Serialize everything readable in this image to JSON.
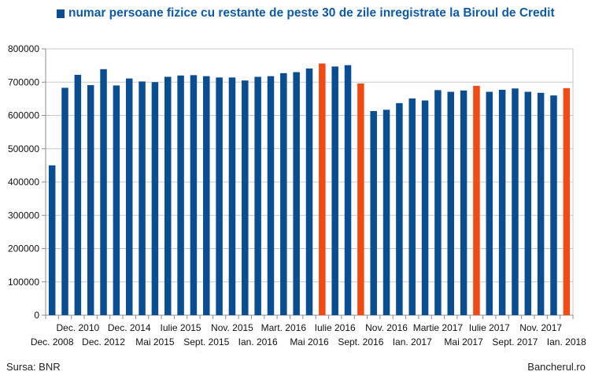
{
  "colors": {
    "bar": "#0b4d91",
    "highlight": "#f24a14",
    "legend_text": "#0f5aa6",
    "grid": "#c8c8c8",
    "axis": "#8c8c8c",
    "text": "#111111"
  },
  "footer": {
    "source": "Sursa: BNR",
    "brand": "Bancherul.ro"
  },
  "chart_data": {
    "type": "bar",
    "legend": "numar persoane fizice cu restante de peste 30 de zile inregistrate la Biroul de Credit",
    "legend_position": "top",
    "grid": true,
    "ylim": [
      0,
      800000
    ],
    "yticks": [
      "0",
      "100000",
      "200000",
      "300000",
      "400000",
      "500000",
      "600000",
      "700000",
      "800000"
    ],
    "x_labels_row1": [
      {
        "bar": 2,
        "text": "Dec. 2010"
      },
      {
        "bar": 6,
        "text": "Dec. 2014"
      },
      {
        "bar": 10,
        "text": "Iulie 2015"
      },
      {
        "bar": 14,
        "text": "Nov. 2015"
      },
      {
        "bar": 18,
        "text": "Mart. 2016"
      },
      {
        "bar": 22,
        "text": "Iulie 2016"
      },
      {
        "bar": 26,
        "text": "Nov. 2016"
      },
      {
        "bar": 30,
        "text": "Martie 2017"
      },
      {
        "bar": 34,
        "text": "Iulie 2017"
      },
      {
        "bar": 38,
        "text": "Nov. 2017"
      }
    ],
    "x_labels_row2": [
      {
        "bar": 0,
        "text": "Dec. 2008"
      },
      {
        "bar": 4,
        "text": "Dec. 2012"
      },
      {
        "bar": 8,
        "text": "Mai 2015"
      },
      {
        "bar": 12,
        "text": "Sept. 2015"
      },
      {
        "bar": 16,
        "text": "Ian. 2016"
      },
      {
        "bar": 20,
        "text": "Mai 2016"
      },
      {
        "bar": 24,
        "text": "Sept. 2016"
      },
      {
        "bar": 28,
        "text": "Ian. 2017"
      },
      {
        "bar": 32,
        "text": "Mai 2017"
      },
      {
        "bar": 36,
        "text": "Sept. 2017"
      },
      {
        "bar": 40,
        "text": "Ian. 2018"
      }
    ],
    "values": [
      450000,
      683000,
      722000,
      691000,
      739000,
      690000,
      711000,
      702000,
      700000,
      716000,
      720000,
      721000,
      718000,
      714000,
      714000,
      705000,
      716000,
      718000,
      727000,
      730000,
      741000,
      756000,
      747000,
      751000,
      696000,
      613000,
      617000,
      637000,
      651000,
      645000,
      676000,
      671000,
      675000,
      689000,
      671000,
      677000,
      681000,
      671000,
      668000,
      660000,
      682000
    ],
    "highlighted": [
      21,
      24,
      33,
      40
    ]
  }
}
